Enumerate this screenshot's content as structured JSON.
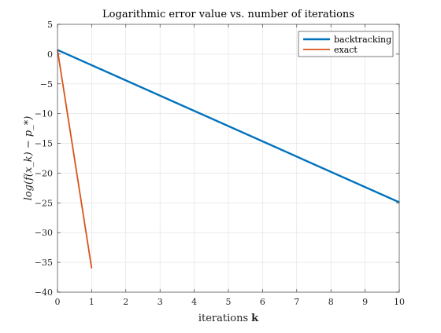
{
  "chart_data": {
    "type": "line",
    "title": "Logarithmic error value vs. number of iterations",
    "xlabel": "iterations",
    "xlabel_bold": "k",
    "ylabel": "log(f(x_k) − p_*)",
    "xlim": [
      0,
      10
    ],
    "ylim": [
      -40,
      5
    ],
    "xticks": [
      0,
      1,
      2,
      3,
      4,
      5,
      6,
      7,
      8,
      9,
      10
    ],
    "yticks": [
      5,
      0,
      -5,
      -10,
      -15,
      -20,
      -25,
      -30,
      -35,
      -40
    ],
    "grid": true,
    "legend_position": "top-right",
    "series": [
      {
        "name": "backtracking",
        "color": "#0072BD",
        "x": [
          0,
          10
        ],
        "y": [
          0.7,
          -24.9
        ]
      },
      {
        "name": "exact",
        "color": "#D95319",
        "x": [
          0,
          1
        ],
        "y": [
          0.7,
          -36.0
        ]
      }
    ]
  }
}
